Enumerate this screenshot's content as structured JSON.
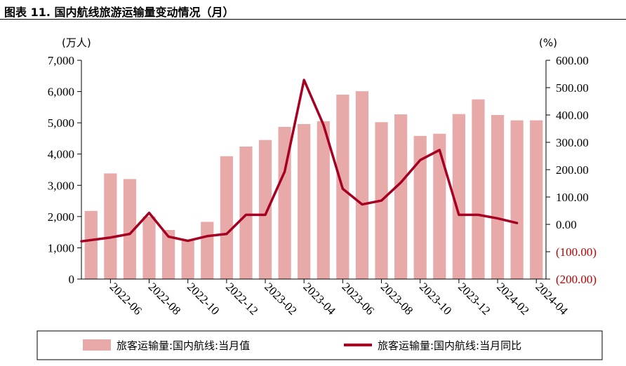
{
  "title": "图表 11. 国内航线旅游运输量变动情况（月）",
  "chart_data": {
    "type": "bar+line",
    "left_unit": "(万人)",
    "right_unit": "(%)",
    "categories": [
      "2022-05",
      "2022-06",
      "2022-07",
      "2022-08",
      "2022-09",
      "2022-10",
      "2022-11",
      "2022-12",
      "2023-01",
      "2023-02",
      "2023-03",
      "2023-04",
      "2023-05",
      "2023-06",
      "2023-07",
      "2023-08",
      "2023-09",
      "2023-10",
      "2023-11",
      "2023-12",
      "2024-01",
      "2024-02",
      "2024-03",
      "2024-04"
    ],
    "x_tick_labels": [
      "2022-06",
      "2022-08",
      "2022-10",
      "2022-12",
      "2023-02",
      "2023-04",
      "2023-06",
      "2023-08",
      "2023-10",
      "2023-12",
      "2024-02",
      "2024-04"
    ],
    "y_left": {
      "min": 0,
      "max": 7000,
      "ticks": [
        "0",
        "1,000",
        "2,000",
        "3,000",
        "4,000",
        "5,000",
        "6,000",
        "7,000"
      ]
    },
    "y_right": {
      "min": -200,
      "max": 600,
      "ticks": [
        "(200.00)",
        "(100.00)",
        "0.00",
        "100.00",
        "200.00",
        "300.00",
        "400.00",
        "500.00",
        "600.00"
      ]
    },
    "series": [
      {
        "name": "旅客运输量:国内航线:当月值",
        "type": "bar",
        "axis": "left",
        "color": "#e8a9a9",
        "values": [
          2180,
          3380,
          3200,
          2000,
          1570,
          1230,
          1830,
          3930,
          4240,
          4450,
          4870,
          4960,
          5050,
          5900,
          6010,
          5020,
          5270,
          4580,
          4650,
          5280,
          5750,
          5250,
          5080,
          5080
        ]
      },
      {
        "name": "旅客运输量:国内航线:当月同比",
        "type": "line",
        "axis": "right",
        "color": "#a50021",
        "values": [
          -62,
          -48,
          -35,
          42,
          -45,
          -60,
          -43,
          -35,
          35,
          35,
          193,
          528,
          365,
          130,
          73,
          87,
          153,
          235,
          272,
          35,
          35,
          22,
          5,
          null
        ]
      }
    ],
    "grid": false,
    "legend_position": "bottom"
  }
}
